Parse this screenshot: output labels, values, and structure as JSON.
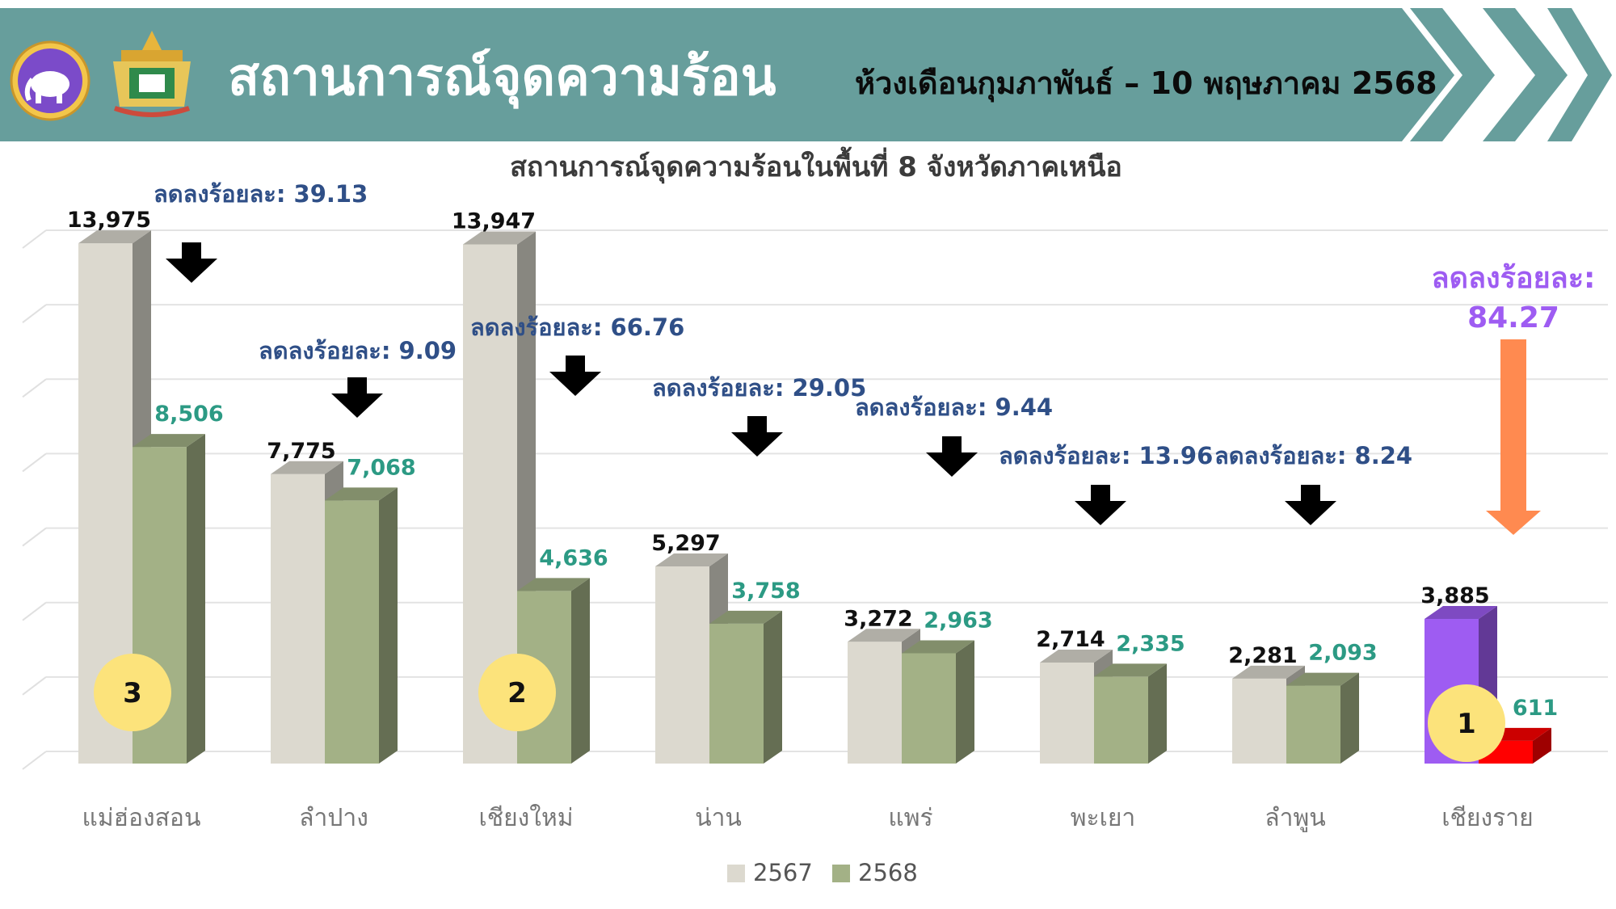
{
  "header": {
    "title": "สถานการณ์จุดความร้อน",
    "subtitle": "ห้วงเดือนกุมภาพันธ์ – 10 พฤษภาคม 2568"
  },
  "colors": {
    "banner": "#679e9c",
    "series_2567": "#dcd9cf",
    "series_2568": "#a3b186",
    "highlight_2567": "#9e5cf2",
    "highlight_2568": "#ff0000",
    "decrease_text": "#2f4f87",
    "value_2568_text": "#2c9a84",
    "highlight_decrease_text": "#9e5cf2",
    "highlight_arrow": "#ff8a50",
    "rank_badge": "#fce37b"
  },
  "chart_data": {
    "type": "bar",
    "title": "สถานการณ์จุดความร้อนในพื้นที่ 8 จังหวัดภาคเหนือ",
    "categories": [
      "แม่ฮ่องสอน",
      "ลำปาง",
      "เชียงใหม่",
      "น่าน",
      "แพร่",
      "พะเยา",
      "ลำพูน",
      "เชียงราย"
    ],
    "series": [
      {
        "name": "2567",
        "values": [
          13975,
          7775,
          13947,
          5297,
          3272,
          2714,
          2281,
          3885
        ]
      },
      {
        "name": "2568",
        "values": [
          8506,
          7068,
          4636,
          3758,
          2963,
          2335,
          2093,
          611
        ]
      }
    ],
    "value_labels_2567": [
      "13,975",
      "7,775",
      "13,947",
      "5,297",
      "3,272",
      "2,714",
      "2,281",
      "3,885"
    ],
    "value_labels_2568": [
      "8,506",
      "7,068",
      "4,636",
      "3,758",
      "2,963",
      "2,335",
      "2,093",
      "611"
    ],
    "decrease_labels": [
      "ลดลงร้อยละ: 39.13",
      "ลดลงร้อยละ: 9.09",
      "ลดลงร้อยละ: 66.76",
      "ลดลงร้อยละ: 29.05",
      "ลดลงร้อยละ: 9.44",
      "ลดลงร้อยละ: 13.96",
      "ลดลงร้อยละ: 8.24"
    ],
    "highlight_decrease": {
      "label": "ลดลงร้อยละ:",
      "value": "84.27"
    },
    "rank_badges": [
      {
        "category_index": 0,
        "rank": "3"
      },
      {
        "category_index": 2,
        "rank": "2"
      },
      {
        "category_index": 7,
        "rank": "1"
      }
    ],
    "ylim": [
      0,
      14000
    ],
    "grid": true,
    "legend_position": "bottom"
  }
}
